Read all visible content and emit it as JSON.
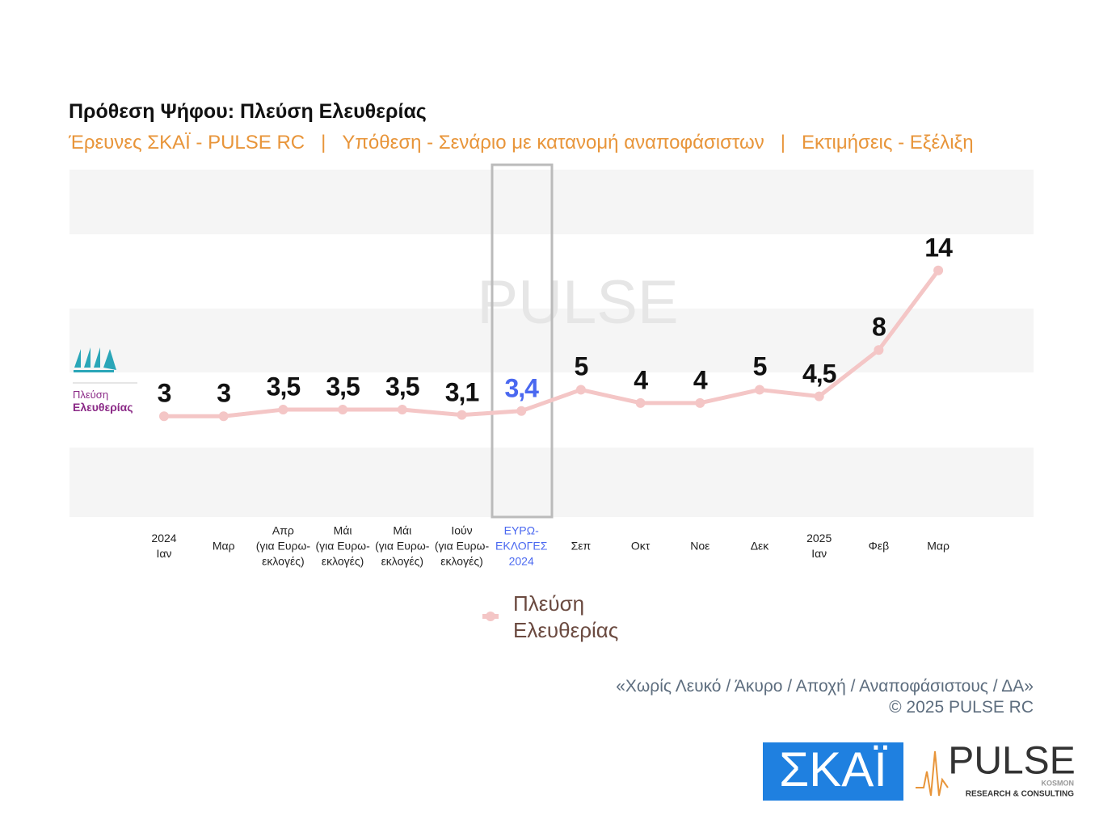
{
  "chart_data": {
    "type": "line",
    "title": "Πρόθεση Ψήφου:  Πλεύση Ελευθερίας",
    "subtitle": "Έρευνες ΣΚΑΪ - PULSE RC   |   Υπόθεση - Σενάριο με κατανομή αναποφάσιστων   |   Εκτιμήσεις - Εξέλιξη",
    "categories": [
      "2024\nΙαν",
      "Μαρ",
      "Απρ\n(για Ευρω-\nεκλογές)",
      "Μάι\n(για Ευρω-\nεκλογές)",
      "Μάι\n(για Ευρω-\nεκλογές)",
      "Ιούν\n(για Ευρω-\nεκλογές)",
      "ΕΥΡΩ-\nΕΚΛΟΓΕΣ\n2024",
      "Σεπ",
      "Οκτ",
      "Νοε",
      "Δεκ",
      "2025\nΙαν",
      "Φεβ",
      "Μαρ"
    ],
    "series": [
      {
        "name": "Πλεύση\nΕλευθερίας",
        "color": "#f4c6c6",
        "values": [
          3,
          3,
          3.5,
          3.5,
          3.5,
          3.1,
          3.4,
          5,
          4,
          4,
          5,
          4.5,
          8,
          14
        ],
        "value_labels": [
          "3",
          "3",
          "3,5",
          "3,5",
          "3,5",
          "3,1",
          "3,4",
          "5",
          "4",
          "4",
          "5",
          "4,5",
          "8",
          "14"
        ]
      }
    ],
    "ylim": [
      -4.6,
      21.6
    ],
    "highlight_index": 6,
    "highlight_color": "#4a68f0",
    "logo_text": [
      "Πλεύση",
      "Ελευθερίας"
    ],
    "watermark": "PULSE"
  },
  "footer": {
    "note": "«Χωρίς Λευκό / Άκυρο / Αποχή / Αναποφάσιστους / ΔΑ»",
    "copyright": "©  2025  PULSE RC",
    "skai_logo": "ΣΚΑΪ",
    "pulse_logo": "PULSE",
    "pulse_kosmon": "KOSMON",
    "pulse_tagline": "RESEARCH & CONSULTING"
  }
}
